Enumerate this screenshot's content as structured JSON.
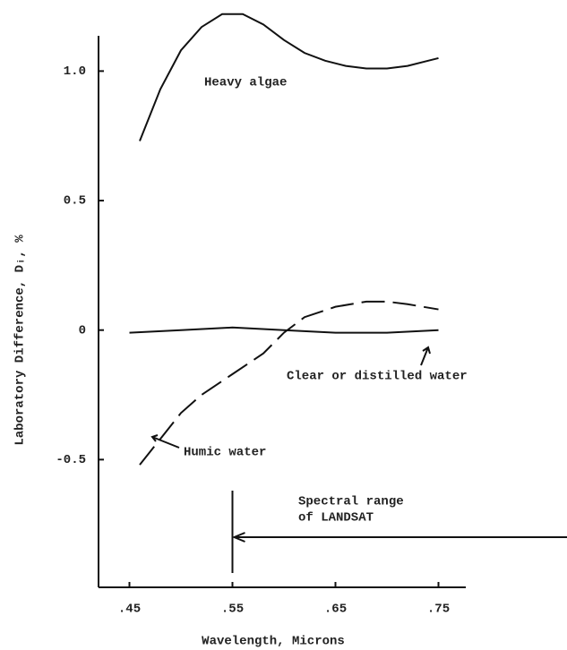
{
  "chart_data": {
    "type": "line",
    "xlabel": "Wavelength, Microns",
    "ylabel": "Laboratory Difference, Dᵢ, %",
    "xlim": [
      0.42,
      0.78
    ],
    "xticks": [
      {
        "value": 0.45,
        "label": ".45"
      },
      {
        "value": 0.55,
        "label": ".55"
      },
      {
        "value": 0.65,
        "label": ".65"
      },
      {
        "value": 0.75,
        "label": ".75"
      }
    ],
    "ylim": [
      -1.0,
      1.15
    ],
    "yticks": [
      {
        "value": 1.0,
        "label": "1.0"
      },
      0.5,
      0,
      -0.5
    ],
    "grid": false,
    "series": [
      {
        "name": "Heavy algae",
        "color": "#111111",
        "style": "solid",
        "x": [
          0.46,
          0.48,
          0.5,
          0.52,
          0.54,
          0.56,
          0.58,
          0.6,
          0.62,
          0.64,
          0.66,
          0.68,
          0.7,
          0.72,
          0.74,
          0.75
        ],
        "values": [
          0.73,
          0.93,
          1.08,
          1.17,
          1.22,
          1.22,
          1.18,
          1.12,
          1.07,
          1.04,
          1.02,
          1.01,
          1.01,
          1.02,
          1.04,
          1.05
        ]
      },
      {
        "name": "Clear or distilled water",
        "color": "#111111",
        "style": "solid",
        "x": [
          0.45,
          0.5,
          0.55,
          0.6,
          0.65,
          0.7,
          0.75
        ],
        "values": [
          -0.01,
          0.0,
          0.01,
          0.0,
          -0.01,
          -0.01,
          0.0
        ]
      },
      {
        "name": "Humic water",
        "color": "#111111",
        "style": "dashed",
        "x": [
          0.46,
          0.48,
          0.5,
          0.52,
          0.55,
          0.58,
          0.6,
          0.62,
          0.65,
          0.68,
          0.7,
          0.72,
          0.75
        ],
        "values": [
          -0.52,
          -0.42,
          -0.32,
          -0.25,
          -0.17,
          -0.09,
          -0.01,
          0.05,
          0.09,
          0.11,
          0.11,
          0.1,
          0.08
        ]
      }
    ],
    "annotations": [
      "Spectral range",
      "of LANDSAT"
    ]
  }
}
